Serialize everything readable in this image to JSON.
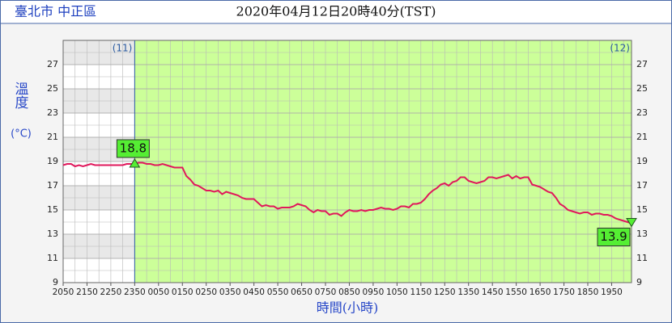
{
  "chart_data": {
    "type": "line",
    "location": "臺北市 中正區",
    "title": "2020年04月12日20時40分(TST)",
    "y_label": "溫度",
    "y_unit": "(°C)",
    "x_label": "時間(小時)",
    "xlim": [
      "2050",
      "2040"
    ],
    "ylim": [
      9,
      29
    ],
    "xticks": [
      "2050",
      "2150",
      "2250",
      "2350",
      "0050",
      "0150",
      "0250",
      "0350",
      "0450",
      "0550",
      "0650",
      "0750",
      "0850",
      "0950",
      "1050",
      "1150",
      "1250",
      "1350",
      "1450",
      "1550",
      "1650",
      "1750",
      "1850",
      "1950"
    ],
    "yticks": [
      9,
      11,
      13,
      15,
      17,
      19,
      21,
      23,
      25,
      27
    ],
    "grid": true,
    "day_divider": "2350",
    "day_labels": [
      {
        "x": "2350",
        "label": "(11)"
      },
      {
        "x": "2040",
        "label": "(12)"
      }
    ],
    "annotations": [
      {
        "x": "2350",
        "value": 18.8
      },
      {
        "x": "2040",
        "value": 13.9
      }
    ],
    "x": [
      "2050",
      "2100",
      "2110",
      "2120",
      "2130",
      "2140",
      "2150",
      "2200",
      "2210",
      "2220",
      "2230",
      "2240",
      "2250",
      "2300",
      "2310",
      "2320",
      "2330",
      "2340",
      "2350",
      "0000",
      "0010",
      "0020",
      "0030",
      "0040",
      "0050",
      "0100",
      "0110",
      "0120",
      "0130",
      "0140",
      "0150",
      "0200",
      "0210",
      "0220",
      "0230",
      "0240",
      "0250",
      "0300",
      "0310",
      "0320",
      "0330",
      "0340",
      "0350",
      "0400",
      "0410",
      "0420",
      "0430",
      "0440",
      "0450",
      "0500",
      "0510",
      "0520",
      "0530",
      "0540",
      "0550",
      "0600",
      "0610",
      "0620",
      "0630",
      "0640",
      "0650",
      "0700",
      "0710",
      "0720",
      "0730",
      "0740",
      "0750",
      "0800",
      "0810",
      "0820",
      "0830",
      "0840",
      "0850",
      "0900",
      "0910",
      "0920",
      "0930",
      "0940",
      "0950",
      "1000",
      "1010",
      "1020",
      "1030",
      "1040",
      "1050",
      "1100",
      "1110",
      "1120",
      "1130",
      "1140",
      "1150",
      "1200",
      "1210",
      "1220",
      "1230",
      "1240",
      "1250",
      "1300",
      "1310",
      "1320",
      "1330",
      "1340",
      "1350",
      "1400",
      "1410",
      "1420",
      "1430",
      "1440",
      "1450",
      "1500",
      "1510",
      "1520",
      "1530",
      "1540",
      "1550",
      "1600",
      "1610",
      "1620",
      "1630",
      "1640",
      "1650",
      "1700",
      "1710",
      "1720",
      "1730",
      "1740",
      "1750",
      "1800",
      "1810",
      "1820",
      "1830",
      "1840",
      "1850",
      "1900",
      "1910",
      "1920",
      "1930",
      "1940",
      "1950",
      "2000",
      "2010",
      "2020",
      "2030",
      "2040"
    ],
    "series": [
      {
        "name": "溫度",
        "color": "#e0185c",
        "values": [
          18.7,
          18.8,
          18.8,
          18.6,
          18.7,
          18.6,
          18.7,
          18.8,
          18.7,
          18.7,
          18.7,
          18.7,
          18.7,
          18.7,
          18.7,
          18.7,
          18.8,
          18.8,
          18.8,
          18.9,
          18.9,
          18.8,
          18.8,
          18.7,
          18.7,
          18.8,
          18.7,
          18.6,
          18.5,
          18.5,
          18.5,
          17.8,
          17.5,
          17.1,
          17.0,
          16.8,
          16.6,
          16.6,
          16.5,
          16.6,
          16.3,
          16.5,
          16.4,
          16.3,
          16.2,
          16.0,
          15.9,
          15.9,
          15.9,
          15.6,
          15.3,
          15.4,
          15.3,
          15.3,
          15.1,
          15.2,
          15.2,
          15.2,
          15.3,
          15.5,
          15.4,
          15.3,
          15.0,
          14.8,
          15.0,
          14.9,
          14.9,
          14.6,
          14.7,
          14.7,
          14.5,
          14.8,
          15.0,
          14.9,
          14.9,
          15.0,
          14.9,
          15.0,
          15.0,
          15.1,
          15.2,
          15.1,
          15.1,
          15.0,
          15.1,
          15.3,
          15.3,
          15.2,
          15.5,
          15.5,
          15.6,
          15.9,
          16.3,
          16.6,
          16.8,
          17.1,
          17.2,
          17.0,
          17.3,
          17.4,
          17.7,
          17.7,
          17.4,
          17.3,
          17.2,
          17.3,
          17.4,
          17.7,
          17.7,
          17.6,
          17.7,
          17.8,
          17.9,
          17.6,
          17.8,
          17.6,
          17.7,
          17.7,
          17.1,
          17.0,
          16.9,
          16.7,
          16.5,
          16.4,
          16.0,
          15.5,
          15.3,
          15.0,
          14.9,
          14.8,
          14.7,
          14.8,
          14.8,
          14.6,
          14.7,
          14.7,
          14.6,
          14.6,
          14.5,
          14.3,
          14.2,
          14.1,
          14.0,
          13.9
        ]
      }
    ]
  }
}
